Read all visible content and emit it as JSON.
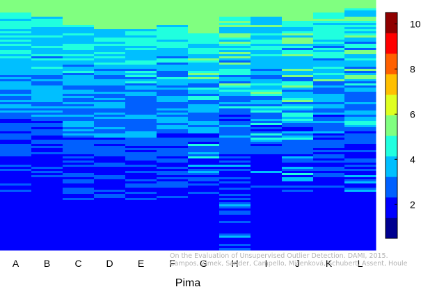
{
  "chart_data": {
    "type": "heatmap",
    "title": "",
    "xlabel": "Pima",
    "ylabel": "",
    "categories": [
      "A",
      "B",
      "C",
      "D",
      "E",
      "F",
      "G",
      "H",
      "I",
      "J",
      "K",
      "L"
    ],
    "colorbar": {
      "min": 0.5,
      "max": 10.5,
      "ticks": [
        2,
        4,
        6,
        8,
        10
      ],
      "levels": 10,
      "colors": [
        "#00008F",
        "#0000FF",
        "#0060FF",
        "#00BFFF",
        "#20FFDF",
        "#80FF80",
        "#DFFF20",
        "#FFBF00",
        "#FF6000",
        "#FF0000",
        "#8F0000"
      ]
    },
    "credit": [
      "On the Evaluation of Unsupervised Outlier Detection. DAMI, 2015.",
      "Campos, Zimek, Sander, Campello, Micenková, Schubert, Assent, Houle"
    ]
  }
}
